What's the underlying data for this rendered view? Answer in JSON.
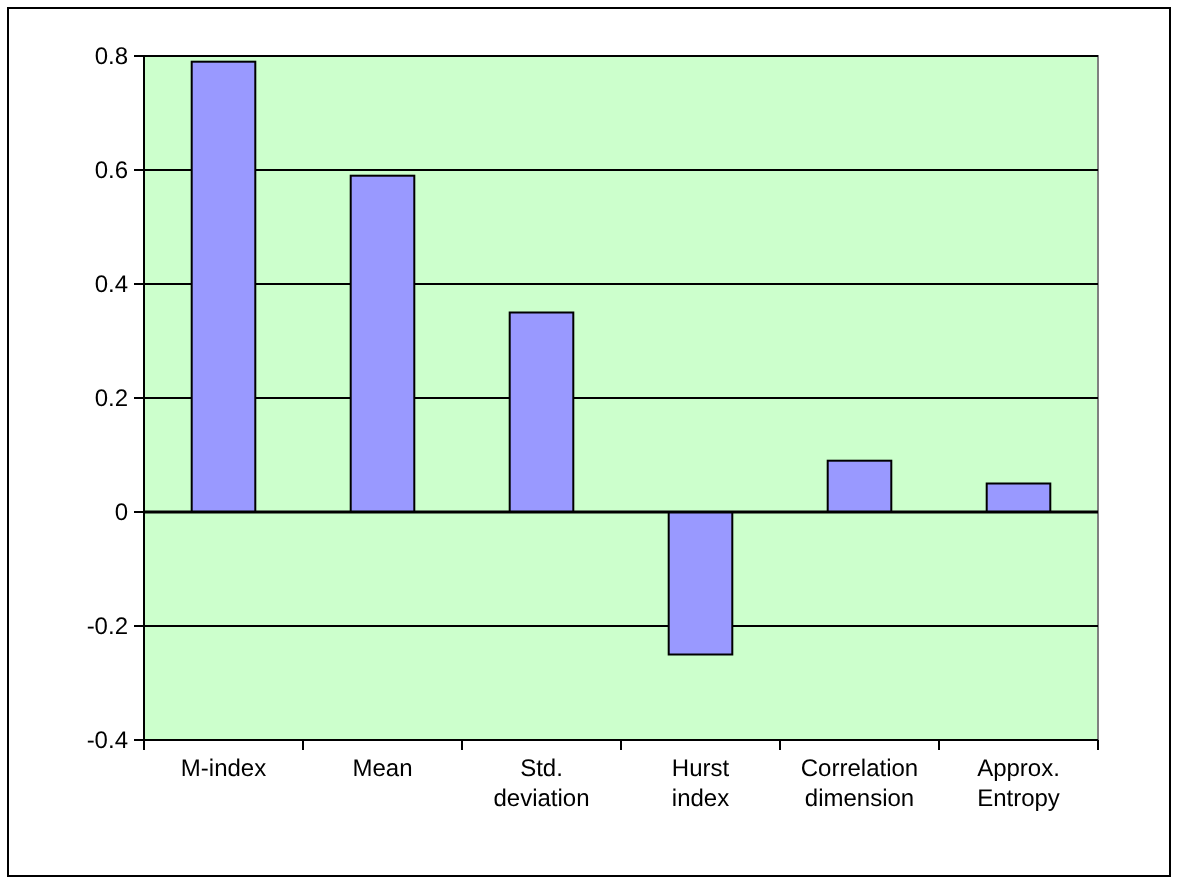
{
  "chart_data": {
    "type": "bar",
    "categories": [
      "M-index",
      "Mean",
      "Std. deviation",
      "Hurst index",
      "Correlation dimension",
      "Approx. Entropy"
    ],
    "values": [
      0.79,
      0.59,
      0.35,
      -0.25,
      0.09,
      0.05
    ],
    "color": "#9999ff",
    "ylim": [
      -0.4,
      0.8
    ],
    "yticks": [
      -0.4,
      -0.2,
      0,
      0.2,
      0.4,
      0.6,
      0.8
    ],
    "grid": "y"
  }
}
